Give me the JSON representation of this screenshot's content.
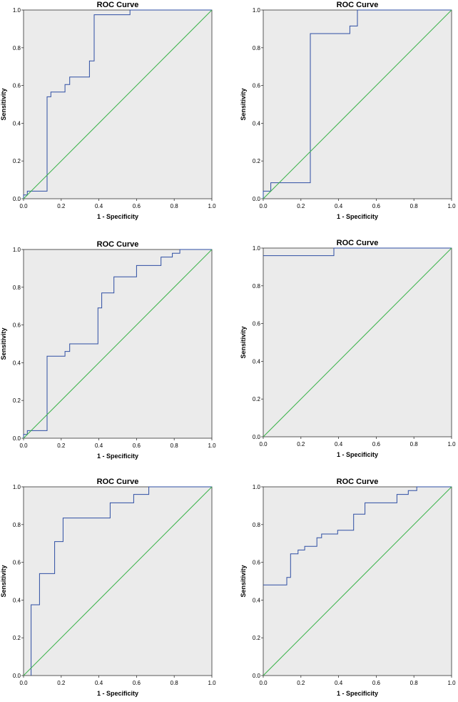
{
  "colors": {
    "plot_bg": "#ebebeb",
    "roc_line": "#2e4ea3",
    "reference_line": "#3bb34a"
  },
  "chart_data": [
    {
      "type": "line",
      "title": "ROC Curve",
      "xlabel": "1 - Specificity",
      "ylabel": "Sensitivity",
      "xlim": [
        0,
        1
      ],
      "ylim": [
        0,
        1
      ],
      "x_ticks": [
        "0.0",
        "0.2",
        "0.4",
        "0.6",
        "0.8",
        "1.0"
      ],
      "y_ticks": [
        "0.0",
        "0.2",
        "0.4",
        "0.6",
        "0.8",
        "1.0"
      ],
      "series": [
        {
          "name": "ROC",
          "points": [
            [
              0,
              0
            ],
            [
              0,
              0.02
            ],
            [
              0.02,
              0.02
            ],
            [
              0.02,
              0.04
            ],
            [
              0.125,
              0.04
            ],
            [
              0.125,
              0.54
            ],
            [
              0.145,
              0.54
            ],
            [
              0.145,
              0.565
            ],
            [
              0.22,
              0.565
            ],
            [
              0.22,
              0.605
            ],
            [
              0.245,
              0.605
            ],
            [
              0.245,
              0.645
            ],
            [
              0.35,
              0.645
            ],
            [
              0.35,
              0.73
            ],
            [
              0.375,
              0.73
            ],
            [
              0.375,
              0.975
            ],
            [
              0.565,
              0.975
            ],
            [
              0.565,
              1.0
            ],
            [
              1,
              1
            ]
          ]
        },
        {
          "name": "Reference",
          "points": [
            [
              0,
              0
            ],
            [
              1,
              1
            ]
          ]
        }
      ]
    },
    {
      "type": "line",
      "title": "ROC Curve",
      "xlabel": "1 - Specificity",
      "ylabel": "Sensitivity",
      "xlim": [
        0,
        1
      ],
      "ylim": [
        0,
        1
      ],
      "x_ticks": [
        "0.0",
        "0.2",
        "0.4",
        "0.6",
        "0.8",
        "1.0"
      ],
      "y_ticks": [
        "0.0",
        "0.2",
        "0.4",
        "0.6",
        "0.8",
        "1.0"
      ],
      "series": [
        {
          "name": "ROC",
          "points": [
            [
              0,
              0
            ],
            [
              0,
              0.04
            ],
            [
              0.04,
              0.04
            ],
            [
              0.04,
              0.085
            ],
            [
              0.25,
              0.085
            ],
            [
              0.25,
              0.875
            ],
            [
              0.46,
              0.875
            ],
            [
              0.46,
              0.915
            ],
            [
              0.5,
              0.915
            ],
            [
              0.5,
              1.0
            ],
            [
              1,
              1
            ]
          ]
        },
        {
          "name": "Reference",
          "points": [
            [
              0,
              0
            ],
            [
              1,
              1
            ]
          ]
        }
      ]
    },
    {
      "type": "line",
      "title": "ROC Curve",
      "xlabel": "1 - Specificity",
      "ylabel": "Sensitivity",
      "xlim": [
        0,
        1
      ],
      "ylim": [
        0,
        1
      ],
      "x_ticks": [
        "0.0",
        "0.2",
        "0.4",
        "0.6",
        "0.8",
        "1.0"
      ],
      "y_ticks": [
        "0.0",
        "0.2",
        "0.4",
        "0.6",
        "0.8",
        "1.0"
      ],
      "series": [
        {
          "name": "ROC",
          "points": [
            [
              0,
              0
            ],
            [
              0,
              0.02
            ],
            [
              0.02,
              0.02
            ],
            [
              0.02,
              0.04
            ],
            [
              0.125,
              0.04
            ],
            [
              0.125,
              0.435
            ],
            [
              0.22,
              0.435
            ],
            [
              0.22,
              0.46
            ],
            [
              0.245,
              0.46
            ],
            [
              0.245,
              0.5
            ],
            [
              0.395,
              0.5
            ],
            [
              0.395,
              0.69
            ],
            [
              0.415,
              0.69
            ],
            [
              0.415,
              0.77
            ],
            [
              0.48,
              0.77
            ],
            [
              0.48,
              0.855
            ],
            [
              0.6,
              0.855
            ],
            [
              0.6,
              0.915
            ],
            [
              0.73,
              0.915
            ],
            [
              0.73,
              0.96
            ],
            [
              0.79,
              0.96
            ],
            [
              0.79,
              0.98
            ],
            [
              0.83,
              0.98
            ],
            [
              0.83,
              1.0
            ],
            [
              1,
              1
            ]
          ]
        },
        {
          "name": "Reference",
          "points": [
            [
              0,
              0
            ],
            [
              1,
              1
            ]
          ]
        }
      ]
    },
    {
      "type": "line",
      "title": "ROC Curve",
      "xlabel": "1 - Specificity",
      "ylabel": "Sensitivity",
      "xlim": [
        0,
        1
      ],
      "ylim": [
        0,
        1
      ],
      "x_ticks": [
        "0.0",
        "0.2",
        "0.4",
        "0.6",
        "0.8",
        "1.0"
      ],
      "y_ticks": [
        "0.0",
        "0.2",
        "0.4",
        "0.6",
        "0.8",
        "1.0"
      ],
      "series": [
        {
          "name": "ROC",
          "points": [
            [
              0,
              0.96
            ],
            [
              0.375,
              0.96
            ],
            [
              0.375,
              1.0
            ],
            [
              1,
              1
            ]
          ]
        },
        {
          "name": "Reference",
          "points": [
            [
              0,
              0
            ],
            [
              1,
              1
            ]
          ]
        }
      ]
    },
    {
      "type": "line",
      "title": "ROC Curve",
      "xlabel": "1 - Specificity",
      "ylabel": "Sensitivity",
      "xlim": [
        0,
        1
      ],
      "ylim": [
        0,
        1
      ],
      "x_ticks": [
        "0.0",
        "0.2",
        "0.4",
        "0.6",
        "0.8",
        "1.0"
      ],
      "y_ticks": [
        "0.0",
        "0.2",
        "0.4",
        "0.6",
        "0.8",
        "1.0"
      ],
      "series": [
        {
          "name": "ROC",
          "points": [
            [
              0.04,
              0
            ],
            [
              0.04,
              0.375
            ],
            [
              0.085,
              0.375
            ],
            [
              0.085,
              0.54
            ],
            [
              0.165,
              0.54
            ],
            [
              0.165,
              0.71
            ],
            [
              0.21,
              0.71
            ],
            [
              0.21,
              0.835
            ],
            [
              0.46,
              0.835
            ],
            [
              0.46,
              0.915
            ],
            [
              0.585,
              0.915
            ],
            [
              0.585,
              0.96
            ],
            [
              0.665,
              0.96
            ],
            [
              0.665,
              1.0
            ],
            [
              1,
              1
            ]
          ]
        },
        {
          "name": "Reference",
          "points": [
            [
              0,
              0
            ],
            [
              1,
              1
            ]
          ]
        }
      ]
    },
    {
      "type": "line",
      "title": "ROC Curve",
      "xlabel": "1 - Specificity",
      "ylabel": "Sensitivity",
      "xlim": [
        0,
        1
      ],
      "ylim": [
        0,
        1
      ],
      "x_ticks": [
        "0.0",
        "0.2",
        "0.4",
        "0.6",
        "0.8",
        "1.0"
      ],
      "y_ticks": [
        "0.0",
        "0.2",
        "0.4",
        "0.6",
        "0.8",
        "1.0"
      ],
      "series": [
        {
          "name": "ROC",
          "points": [
            [
              0,
              0.48
            ],
            [
              0.125,
              0.48
            ],
            [
              0.125,
              0.52
            ],
            [
              0.145,
              0.52
            ],
            [
              0.145,
              0.645
            ],
            [
              0.185,
              0.645
            ],
            [
              0.185,
              0.665
            ],
            [
              0.22,
              0.665
            ],
            [
              0.22,
              0.685
            ],
            [
              0.285,
              0.685
            ],
            [
              0.285,
              0.73
            ],
            [
              0.31,
              0.73
            ],
            [
              0.31,
              0.75
            ],
            [
              0.395,
              0.75
            ],
            [
              0.395,
              0.77
            ],
            [
              0.48,
              0.77
            ],
            [
              0.48,
              0.855
            ],
            [
              0.54,
              0.855
            ],
            [
              0.54,
              0.915
            ],
            [
              0.71,
              0.915
            ],
            [
              0.71,
              0.96
            ],
            [
              0.77,
              0.96
            ],
            [
              0.77,
              0.98
            ],
            [
              0.815,
              0.98
            ],
            [
              0.815,
              1.0
            ],
            [
              1,
              1
            ]
          ]
        },
        {
          "name": "Reference",
          "points": [
            [
              0,
              0
            ],
            [
              1,
              1
            ]
          ]
        }
      ]
    }
  ]
}
